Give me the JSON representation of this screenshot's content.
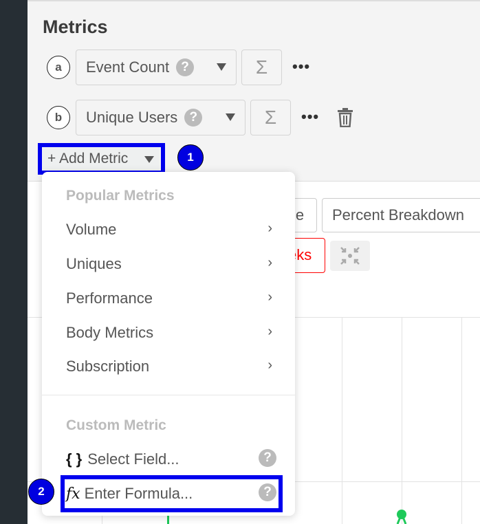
{
  "section_title": "Metrics",
  "metrics": [
    {
      "letter": "a",
      "name": "Event Count",
      "help": "?",
      "agg": "Σ",
      "more": "•••"
    },
    {
      "letter": "b",
      "name": "Unique Users",
      "help": "?",
      "agg": "Σ",
      "more": "•••"
    }
  ],
  "add_metric_label": "+ Add Metric",
  "annotations": [
    "1",
    "2"
  ],
  "background_buttons": {
    "partial_left": "le",
    "percent_breakdown": "Percent Breakdown",
    "partial_red": "eks"
  },
  "menu": {
    "popular_header": "Popular Metrics",
    "popular_items": [
      "Volume",
      "Uniques",
      "Performance",
      "Body Metrics",
      "Subscription"
    ],
    "chevron": "›",
    "custom_header": "Custom Metric",
    "select_field": {
      "icon": "{ }",
      "label": "Select Field...",
      "help": "?"
    },
    "enter_formula": {
      "icon": "fx",
      "label": "Enter Formula...",
      "help": "?"
    }
  },
  "colors": {
    "highlight": "#0000ee",
    "series_green": "#1ec95a",
    "alert_red": "#ff0000"
  }
}
